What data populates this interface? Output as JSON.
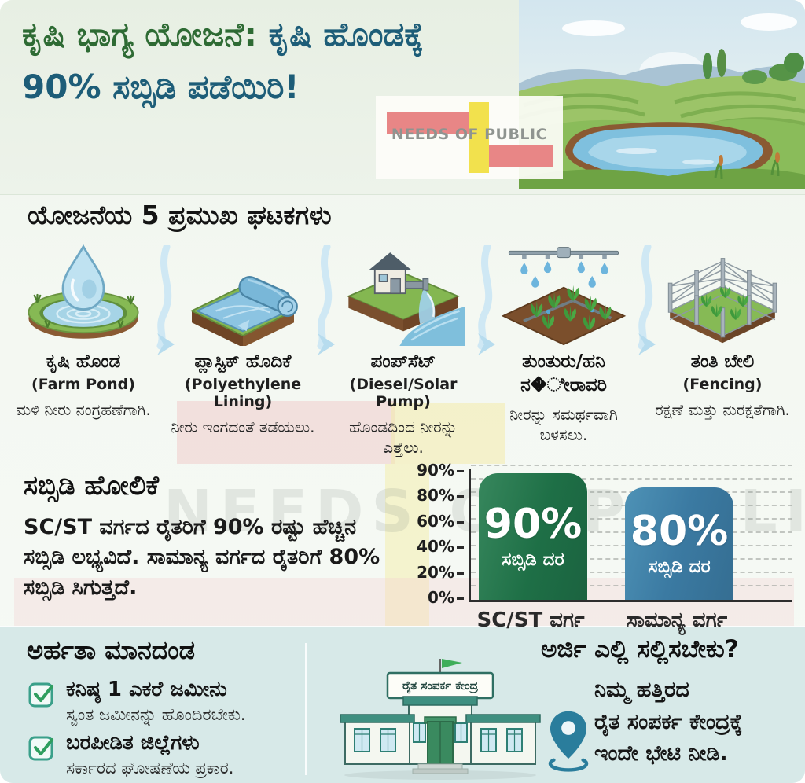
{
  "header": {
    "title_part1": "ಕೃಷಿ ಭಾಗ್ಯ ಯೋಜನೆ:",
    "title_part2": "ಕೃಷಿ ಹೊಂಡಕ್ಕೆ",
    "title_line2": "90% ಸಬ್ಸಿಡಿ ಪಡೆಯಿರಿ!",
    "logo_text": "NEEDS OF PUBLIC"
  },
  "components": {
    "section_title": "ಯೋಜನೆಯ 5 ಪ್ರಮುಖ ಘಟಕಗಳು",
    "items": [
      {
        "name": "ಕೃಷಿ ಹೊಂಡ",
        "english": "(Farm Pond)",
        "desc": "ಮಳಿ ನೀರು ನಂಗ್ರಹಣೆಗಾಗಿ."
      },
      {
        "name": "ಪ್ಲಾಸ್ಟಿಕ್ ಹೊದಿಕೆ",
        "english": "(Polyethylene Lining)",
        "desc": "ನೀರು ಇಂಗದಂತೆ ತಡೆಯಲು."
      },
      {
        "name": "ಪಂಪ್‌ಸೆಟ್",
        "english": "(Diesel/Solar Pump)",
        "desc": "ಹೊಂಡದಿಂದ ನೀರನ್ನು ಎತ್ತೆಲು."
      },
      {
        "name": "ತುಂತುರು/ಹನಿ ನ�ೀರಾವರಿ",
        "english": "",
        "desc": "ನೀರನ್ನು ಸಮರ್ಥವಾಗಿ ಬಳಸಲು."
      },
      {
        "name": "ತಂತಿ ಬೇಲಿ",
        "english": "(Fencing)",
        "desc": "ರಕ್ಷಣೆ ಮತ್ತು ನುರಕ್ಷತೆಗಾಗಿ."
      }
    ]
  },
  "subsidy": {
    "heading": "ಸಬ್ಸಿಡಿ ಹೋಲಿಕೆ",
    "body": "SC/ST ವರ್ಗದ ರೈತರಿಗೆ 90% ರಷ್ಟು ಹೆಚ್ಚಿನ ಸಬ್ಸಿಡಿ ಲಭ್ಯವಿದೆ. ಸಾಮಾನ್ಯ ವರ್ಗದ ರೈತರಿಗೆ 80% ಸಬ್ಸಿಡಿ ಸಿಗುತ್ತದೆ.",
    "watermark": "NEEDS OF PUBLIC"
  },
  "chart_data": {
    "type": "bar",
    "title": "ಸಬ್ಸಿಡಿ ಹೋಲಿಕೆ",
    "categories": [
      "SC/ST ವರ್ಗ",
      "ಸಾಮಾನ್ಯ ವರ್ಗ"
    ],
    "values": [
      90,
      80
    ],
    "bar_value_labels": [
      "90%",
      "80%"
    ],
    "bar_sub_labels": [
      "ಸಬ್ಸಿಡಿ ದರ",
      "ಸಬ್ಸಿಡಿ ದರ"
    ],
    "y_ticks": [
      "90%",
      "80%",
      "60%",
      "40%",
      "20%",
      "0%"
    ],
    "ylim": [
      0,
      95
    ],
    "grid": true,
    "legend": false,
    "bar_colors": [
      "#1e6f46",
      "#3b7aa2"
    ],
    "xlabel": "",
    "ylabel": ""
  },
  "eligibility": {
    "heading": "ಅರ್ಹತಾ ಮಾನದಂಡ",
    "items": [
      {
        "title": "ಕನಿಷ್ಠ 1 ಎಕರೆ ಜಮೀನು",
        "sub": "ಸ್ವಂತ ಜಮೀನನ್ನು ಹೊಂದಿರಬೇಕು."
      },
      {
        "title": "ಬರಪೀಡಿತ ಜಿಲ್ಲೆಗಳು",
        "sub": "ಸರ್ಕಾರದ ಘೋಷಣೆಯ ಪ್ರಕಾರ."
      }
    ]
  },
  "apply": {
    "heading": "ಅರ್ಜಿ ಎಲ್ಲಿ ಸಲ್ಲಿಸಬೇಕು?",
    "line1": "ನಿಮ್ಮ ಹತ್ತಿರದ",
    "line2": "ರೈತ ಸಂಪರ್ಕ ಕೇಂದ್ರಕ್ಕೆ",
    "line3": "ಇಂದೇ ಭೇಟಿ ನೀಡಿ.",
    "building_sign": "ರೈತ ಸಂಪರ್ಕ ಕೇಂದ್ರ"
  },
  "colors": {
    "title_green": "#2e6b34",
    "title_teal": "#1d5d78",
    "bar_green": "#1e6f46",
    "bar_blue": "#3b7aa2",
    "logo_red": "#e88686",
    "logo_yellow": "#f2e14d",
    "check_teal": "#3aa08a",
    "pin_teal": "#2a7d9c",
    "footer_bg": "#d7e9e8"
  }
}
